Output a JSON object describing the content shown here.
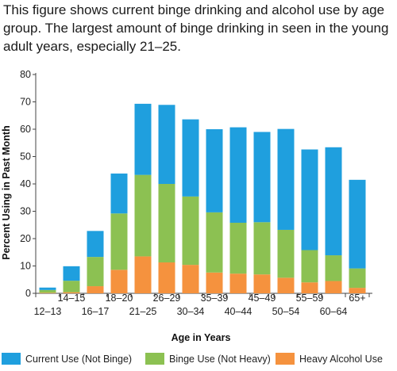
{
  "caption": "This figure shows current binge drinking and alcohol use by age group. The largest amount of binge drinking in seen in the young adult years, especially 21–25.",
  "chart_data": {
    "type": "bar",
    "stacked": true,
    "xlabel": "Age in Years",
    "ylabel": "Percent Using in Past Month",
    "ylim": [
      0,
      80
    ],
    "yticks": [
      0,
      10,
      20,
      30,
      40,
      50,
      60,
      70,
      80
    ],
    "grid": false,
    "legend_position": "bottom",
    "categories": [
      "12–13",
      "14–15",
      "16–17",
      "18–20",
      "21–25",
      "26–29",
      "30–34",
      "35–39",
      "40–44",
      "45–49",
      "50–54",
      "55–59",
      "60–64",
      "65+"
    ],
    "series": [
      {
        "name": "Heavy Alcohol Use",
        "color": "#f5923e",
        "values": [
          0.2,
          0.4,
          2.6,
          8.6,
          13.5,
          11.3,
          10.4,
          7.6,
          7.2,
          6.9,
          5.7,
          4.0,
          4.5,
          2.0
        ]
      },
      {
        "name": "Binge Use (Not Heavy)",
        "color": "#8cc152",
        "values": [
          1.0,
          4.2,
          10.7,
          20.6,
          29.8,
          28.7,
          25.0,
          22.0,
          18.6,
          19.1,
          17.5,
          11.8,
          9.4,
          7.1
        ]
      },
      {
        "name": "Current Use (Not Binge)",
        "color": "#1f9fde",
        "values": [
          0.9,
          5.3,
          9.5,
          14.6,
          26.0,
          28.9,
          28.2,
          30.4,
          34.9,
          33.0,
          36.9,
          36.8,
          39.5,
          32.4
        ]
      }
    ],
    "legend_order": [
      "Current Use (Not Binge)",
      "Binge Use (Not Heavy)",
      "Heavy Alcohol Use"
    ]
  }
}
